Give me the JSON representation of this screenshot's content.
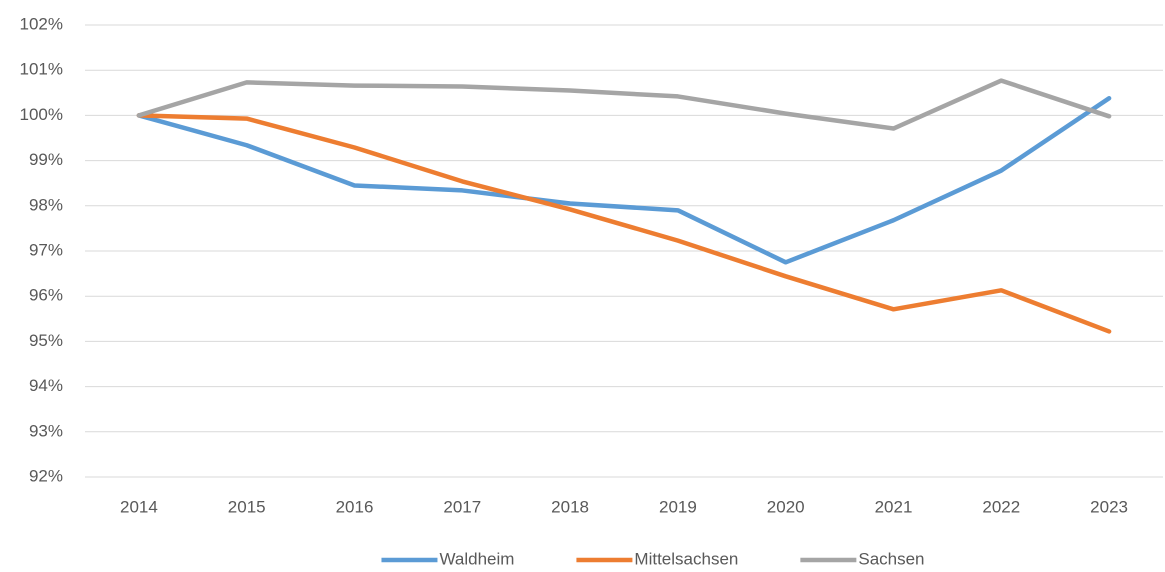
{
  "chart_data": {
    "type": "line",
    "categories": [
      "2014",
      "2015",
      "2016",
      "2017",
      "2018",
      "2019",
      "2020",
      "2021",
      "2022",
      "2023"
    ],
    "series": [
      {
        "name": "Waldheim",
        "color": "#5b9bd5",
        "values": [
          100,
          99.34,
          98.45,
          98.34,
          98.05,
          97.9,
          96.75,
          97.68,
          98.78,
          100.38
        ]
      },
      {
        "name": "Mittelsachsen",
        "color": "#ed7d31",
        "values": [
          100,
          99.93,
          99.29,
          98.54,
          97.92,
          97.23,
          96.44,
          95.71,
          96.13,
          95.22
        ]
      },
      {
        "name": "Sachsen",
        "color": "#a5a5a5",
        "values": [
          100,
          100.73,
          100.66,
          100.64,
          100.55,
          100.42,
          100.04,
          99.71,
          100.77,
          99.98
        ]
      }
    ],
    "ylim": [
      92,
      102
    ],
    "yticks": [
      {
        "value": 92,
        "label": "92%"
      },
      {
        "value": 93,
        "label": "93%"
      },
      {
        "value": 94,
        "label": "94%"
      },
      {
        "value": 95,
        "label": "95%"
      },
      {
        "value": 96,
        "label": "96%"
      },
      {
        "value": 97,
        "label": "97%"
      },
      {
        "value": 98,
        "label": "98%"
      },
      {
        "value": 99,
        "label": "99%"
      },
      {
        "value": 100,
        "label": "100%"
      },
      {
        "value": 101,
        "label": "101%"
      },
      {
        "value": 102,
        "label": "102%"
      }
    ],
    "grid": true,
    "legend": "bottom"
  }
}
